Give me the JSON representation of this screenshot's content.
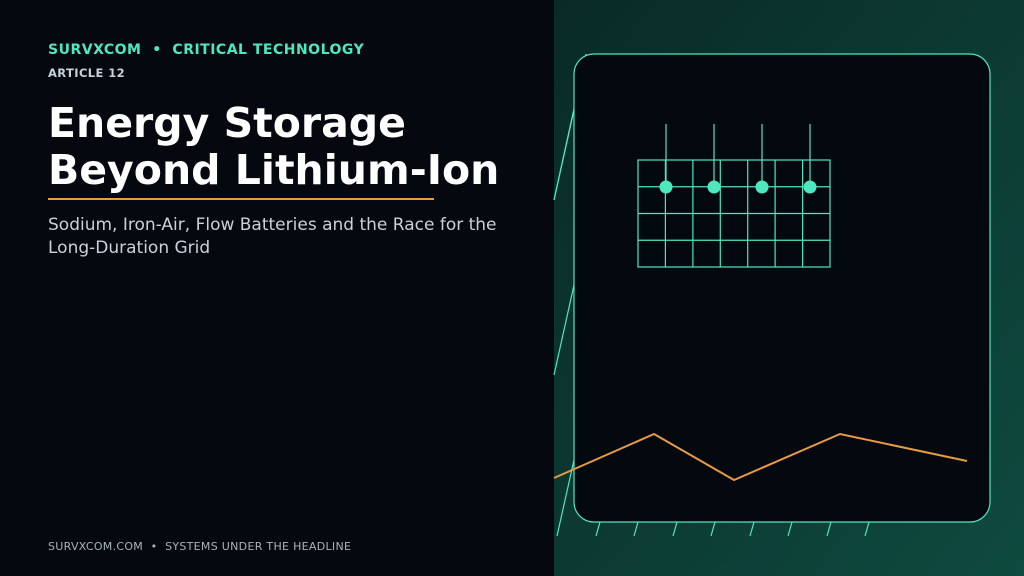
{
  "header": {
    "kicker": "SURVXCOM  •  CRITICAL TECHNOLOGY",
    "article": "ARTICLE 12"
  },
  "title": {
    "lines": [
      "Energy Storage",
      "Beyond Lithium-Ion"
    ]
  },
  "subtitle": "Sodium, Iron-Air, Flow Batteries and the Race for the Long-Duration Grid",
  "footer": "SURVXCOM.COM  •  SYSTEMS UNDER THE HEADLINE"
}
